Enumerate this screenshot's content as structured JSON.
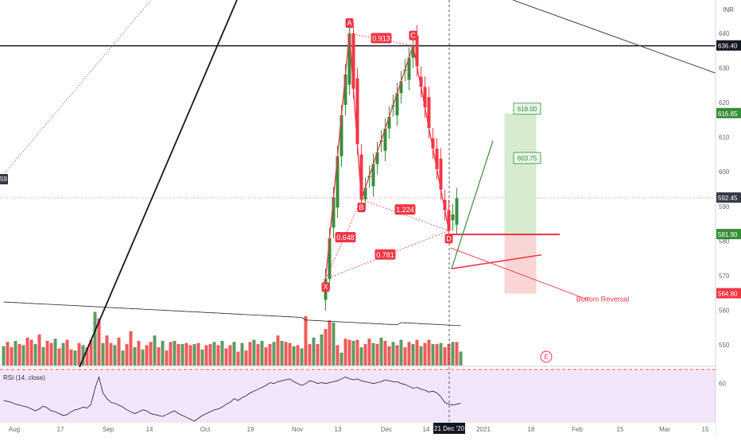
{
  "chart_data": {
    "type": "candlestick",
    "currency": "INR",
    "y_ticks": [
      640,
      630,
      620,
      610,
      600,
      590,
      580,
      570,
      560,
      550
    ],
    "x_ticks": [
      "Aug",
      "17",
      "Sep",
      "14",
      "Oct",
      "19",
      "Nov",
      "13",
      "Dec",
      "14",
      "21 Dec '20",
      "2021",
      "18",
      "Feb",
      "15",
      "Mar",
      "15"
    ],
    "ylim": [
      545,
      647
    ],
    "price_labels": [
      {
        "value": 636.4,
        "text": "636.40",
        "color": "#131722"
      },
      {
        "value": 616.85,
        "text": "616.85",
        "color": "#388e3c"
      },
      {
        "value": 592.45,
        "text": "592.45",
        "color": "#363a45"
      },
      {
        "value": 581.9,
        "text": "581.90",
        "color": "#388e3c"
      },
      {
        "value": 564.8,
        "text": "564.80",
        "color": "#f23645"
      }
    ],
    "left_edge_label": "59",
    "harmonic_pattern": {
      "points": [
        {
          "label": "X",
          "bar": 81,
          "price": 569.0
        },
        {
          "label": "A",
          "bar": 87,
          "price": 640.0
        },
        {
          "label": "B",
          "bar": 90,
          "price": 592.0
        },
        {
          "label": "C",
          "bar": 103,
          "price": 636.4
        },
        {
          "label": "D",
          "bar": 112,
          "price": 583.0
        }
      ],
      "ratios": [
        {
          "text": "0.913",
          "bar": 95,
          "price": 638.5
        },
        {
          "text": "1.224",
          "bar": 101,
          "price": 589.0
        },
        {
          "text": "0.648",
          "bar": 86,
          "price": 581.0
        },
        {
          "text": "0.781",
          "bar": 96,
          "price": 576.0
        }
      ]
    },
    "targets": [
      {
        "text": "618.00",
        "price": 618.0
      },
      {
        "text": "603.75",
        "price": 603.75
      }
    ],
    "position_box": {
      "entry": 581.9,
      "target": 616.85,
      "stop": 564.8,
      "bar_start": 126,
      "bar_end": 134
    },
    "annotation": "Bottom Reversal",
    "event_marker": "E",
    "volume_values": [
      18,
      22,
      17,
      23,
      20,
      19,
      26,
      24,
      20,
      29,
      17,
      23,
      21,
      25,
      16,
      21,
      24,
      15,
      14,
      21,
      19,
      17,
      24,
      50,
      44,
      21,
      28,
      21,
      19,
      26,
      14,
      20,
      32,
      17,
      23,
      15,
      19,
      22,
      28,
      17,
      23,
      14,
      22,
      23,
      20,
      20,
      21,
      19,
      20,
      21,
      15,
      19,
      20,
      22,
      19,
      23,
      16,
      19,
      22,
      13,
      21,
      14,
      22,
      24,
      20,
      23,
      17,
      20,
      22,
      28,
      23,
      22,
      21,
      18,
      19,
      16,
      46,
      20,
      26,
      20,
      29,
      34,
      42,
      40,
      19,
      12,
      25,
      24,
      23,
      24,
      17,
      20,
      25,
      21,
      20,
      26,
      23,
      18,
      22,
      19,
      24,
      17,
      22,
      20,
      24,
      18,
      21,
      24,
      20,
      20,
      21,
      17,
      20,
      22,
      22,
      13
    ],
    "volume_ma_label": "",
    "rsi": {
      "label": "RSI (14, close)",
      "ticks": [
        60.0
      ],
      "ylim": [
        20,
        75
      ],
      "values": [
        42,
        41,
        40,
        38,
        37,
        36,
        35,
        33,
        31,
        33,
        36,
        34,
        31,
        30,
        28,
        26,
        27,
        30,
        32,
        33,
        35,
        34,
        38,
        55,
        67,
        50,
        44,
        40,
        39,
        37,
        35,
        32,
        30,
        28,
        30,
        32,
        31,
        28,
        27,
        26,
        25,
        27,
        29,
        31,
        28,
        26,
        24,
        22,
        20,
        23,
        26,
        28,
        30,
        32,
        33,
        35,
        38,
        40,
        44,
        42,
        45,
        47,
        50,
        52,
        54,
        56,
        58,
        61,
        60,
        62,
        63,
        64,
        65,
        62,
        60,
        58,
        60,
        63,
        62,
        60,
        61,
        60,
        61,
        62,
        63,
        65,
        67,
        65,
        64,
        65,
        63,
        62,
        61,
        60,
        61,
        62,
        64,
        63,
        62,
        62,
        60,
        59,
        57,
        55,
        56,
        54,
        53,
        51,
        52,
        50,
        46,
        40,
        38,
        37,
        38,
        39
      ]
    }
  }
}
